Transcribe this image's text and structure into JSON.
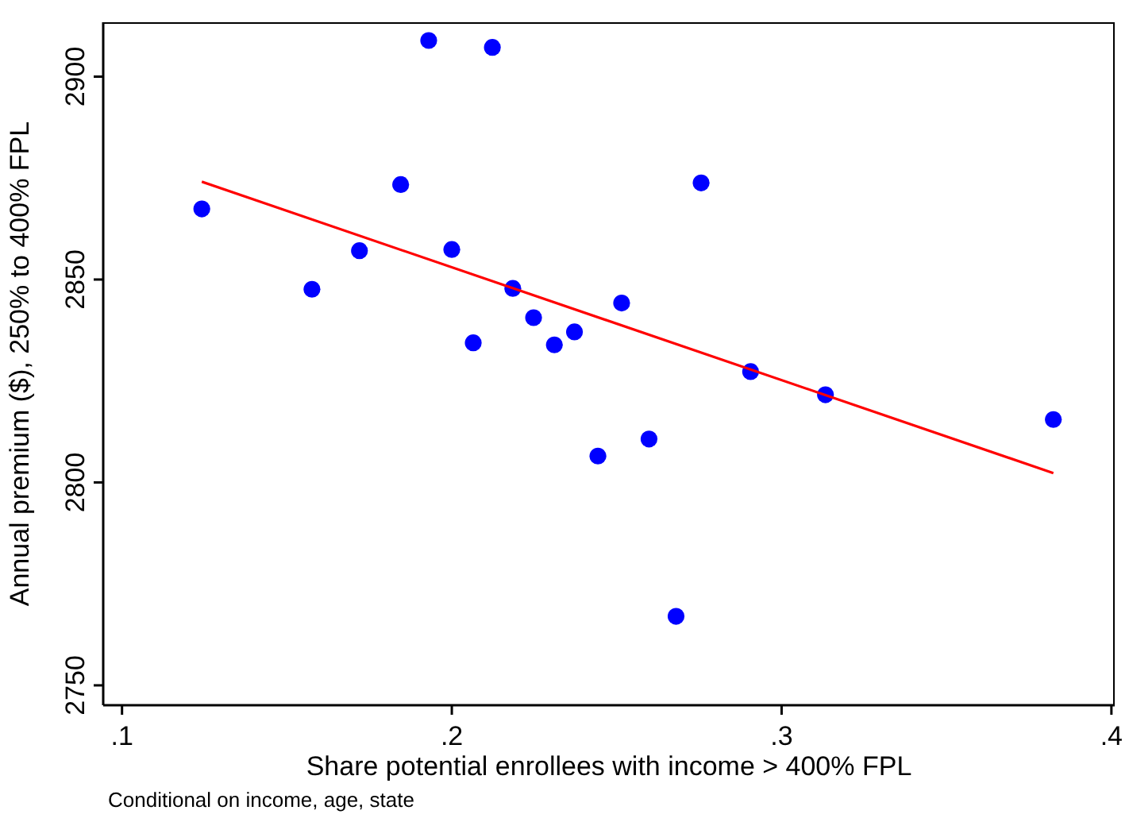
{
  "chart_data": {
    "type": "scatter",
    "xlabel": "Share potential enrollees with income > 400% FPL",
    "ylabel": "Annual premium ($), 250% to 400% FPL",
    "annotations": [
      "Conditional on income, age, state"
    ],
    "xlim": [
      0.0943,
      0.401
    ],
    "ylim": [
      2745.1,
      2913.4
    ],
    "xticks": [
      {
        "value": 0.1,
        "label": ".1"
      },
      {
        "value": 0.2,
        "label": ".2"
      },
      {
        "value": 0.3,
        "label": ".3"
      },
      {
        "value": 0.4,
        "label": ".4"
      }
    ],
    "yticks": [
      2750,
      2800,
      2850,
      2900
    ],
    "grid": false,
    "series": [
      {
        "marker": "circle",
        "color": "#0000ff",
        "x": [
          0.1242,
          0.1576,
          0.172,
          0.1845,
          0.193,
          0.2,
          0.2065,
          0.2123,
          0.2185,
          0.2248,
          0.2311,
          0.2372,
          0.2443,
          0.2515,
          0.2598,
          0.268,
          0.2756,
          0.2906,
          0.3133,
          0.3824
        ],
        "values": [
          2867.4,
          2847.6,
          2857.1,
          2873.4,
          2908.9,
          2857.4,
          2834.4,
          2907.2,
          2847.8,
          2840.6,
          2833.9,
          2837.1,
          2806.5,
          2844.2,
          2810.7,
          2767.0,
          2873.8,
          2827.3,
          2821.6,
          2815.5
        ]
      },
      {
        "type": "line",
        "marker": "none",
        "color": "#ff0000",
        "x": [
          0.1242,
          0.3824
        ],
        "values": [
          2874.1,
          2802.3
        ]
      }
    ]
  }
}
